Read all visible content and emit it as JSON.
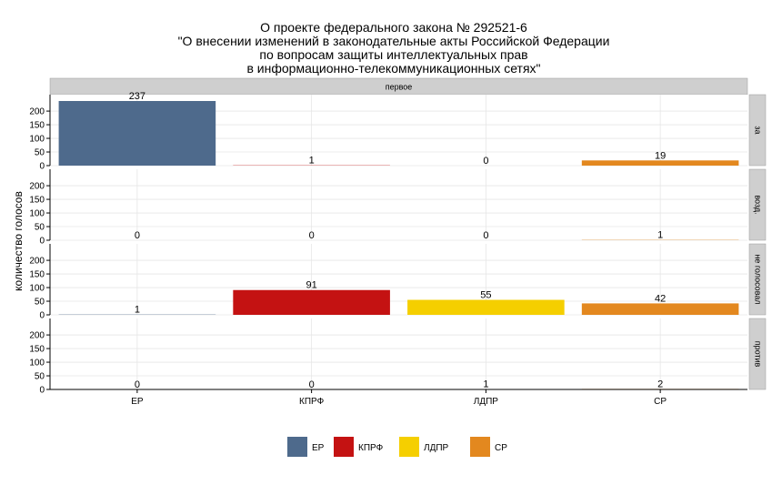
{
  "chart_data": {
    "type": "bar",
    "title_lines": [
      "О проекте федерального закона № 292521-6",
      "\"О внесении изменений в законодательные акты Российской Федерации",
      "по вопросам защиты интеллектуальных прав",
      "в информационно-телекоммуникационных сетях\""
    ],
    "strip_top": "первое",
    "ylabel": "количество голосов",
    "xlabel": "",
    "categories": [
      "ЕР",
      "КПРФ",
      "ЛДПР",
      "СР"
    ],
    "colors": [
      "#4e6a8c",
      "#c41212",
      "#f5cf00",
      "#e3881f"
    ],
    "ylim": [
      0,
      237
    ],
    "yticks": [
      0,
      50,
      100,
      150,
      200
    ],
    "grid": true,
    "legend_position": "bottom",
    "facets": [
      {
        "name": "за",
        "values": [
          237,
          1,
          0,
          19
        ]
      },
      {
        "name": "возд.",
        "values": [
          0,
          0,
          0,
          1
        ]
      },
      {
        "name": "не голосовал",
        "values": [
          1,
          91,
          55,
          42
        ]
      },
      {
        "name": "против",
        "values": [
          0,
          0,
          1,
          2
        ]
      }
    ]
  }
}
